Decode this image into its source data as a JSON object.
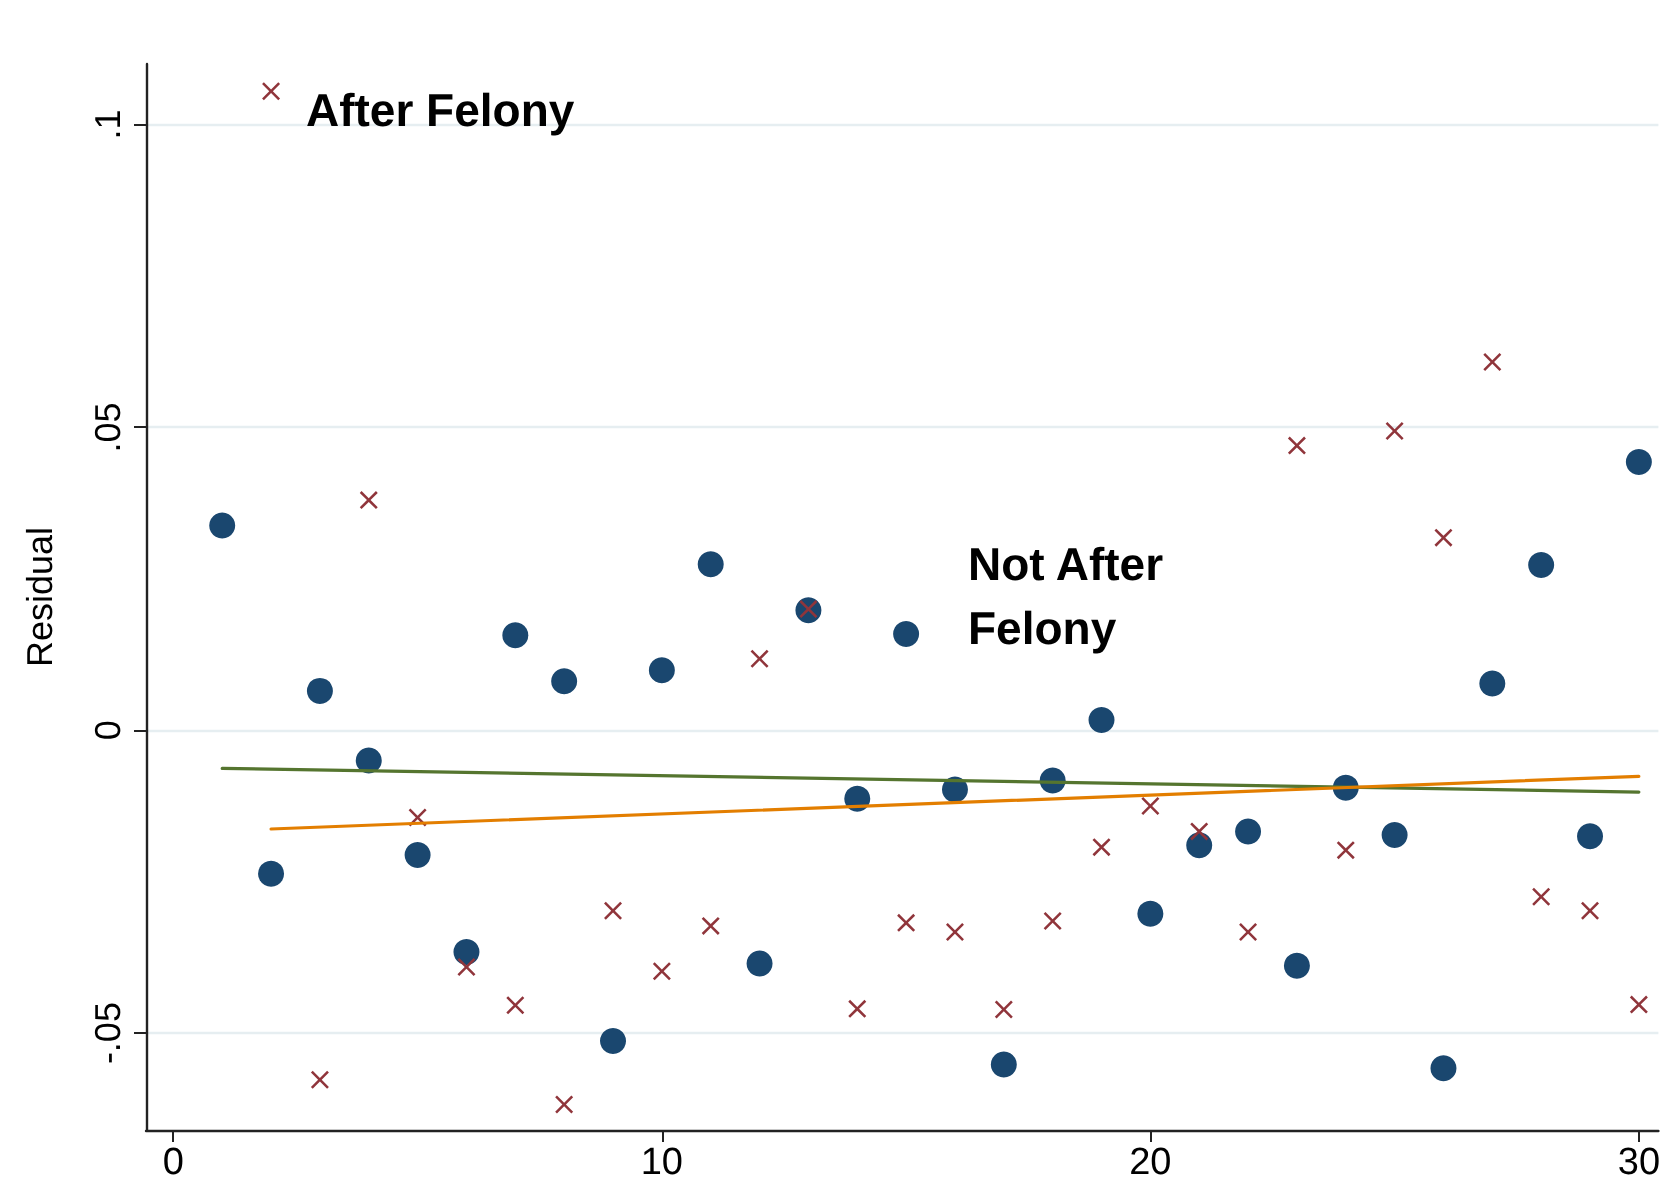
{
  "chart_data": {
    "type": "scatter",
    "ylabel": "Residual",
    "annotations": [
      "After Felony",
      "Not After\nFelony"
    ],
    "xlim": [
      -0.56,
      30.4
    ],
    "xticks": [
      0,
      10,
      20,
      30
    ],
    "ylim": [
      -0.066,
      0.11
    ],
    "yticks": [
      {
        "value": -0.05,
        "label": "-.05"
      },
      {
        "value": 0,
        "label": "0"
      },
      {
        "value": 0.05,
        "label": ".05"
      },
      {
        "value": 0.1,
        "label": ".1"
      }
    ],
    "grid": "y",
    "series": [
      {
        "marker": "circle",
        "color": "#1a476f",
        "x": [
          1,
          2,
          3,
          4,
          5,
          6,
          7,
          8,
          9,
          10,
          11,
          12,
          13,
          14,
          15,
          16,
          17,
          18,
          19,
          20,
          21,
          22,
          23,
          24,
          25,
          26,
          27,
          28,
          29,
          30
        ],
        "values": [
          0.0338,
          -0.0237,
          0.0065,
          -0.005,
          -0.0206,
          -0.0366,
          0.0157,
          0.0081,
          -0.0513,
          0.0099,
          0.0274,
          -0.0385,
          0.0198,
          -0.0113,
          0.0159,
          -0.0098,
          -0.0552,
          -0.0083,
          0.0017,
          -0.0303,
          -0.019,
          -0.0167,
          -0.0389,
          -0.0095,
          -0.0173,
          -0.0558,
          0.0077,
          0.0273,
          -0.0175,
          0.0443
        ]
      },
      {
        "marker": "cross",
        "color": "#90353b",
        "x": [
          2,
          3,
          4,
          5,
          6,
          7,
          8,
          9,
          10,
          11,
          12,
          13,
          14,
          15,
          16,
          17,
          18,
          19,
          20,
          21,
          22,
          23,
          24,
          25,
          26,
          27,
          28,
          29,
          30
        ],
        "values": [
          0.1055,
          -0.0577,
          0.038,
          -0.0144,
          -0.0391,
          -0.0454,
          -0.0618,
          -0.0298,
          -0.0398,
          -0.0323,
          0.0118,
          0.02,
          -0.046,
          -0.0318,
          -0.0333,
          -0.0461,
          -0.0315,
          -0.0193,
          -0.0125,
          -0.0167,
          -0.0333,
          0.047,
          -0.0198,
          0.0494,
          0.0318,
          0.0608,
          -0.0275,
          -0.0298,
          -0.0453
        ]
      },
      {
        "type": "line",
        "marker": "none",
        "color": "#55752f",
        "x": [
          1,
          30
        ],
        "values": [
          -0.0063,
          -0.0102
        ]
      },
      {
        "type": "line",
        "marker": "none",
        "color": "#e37e00",
        "x": [
          2,
          30
        ],
        "values": [
          -0.0163,
          -0.0076
        ]
      }
    ]
  }
}
